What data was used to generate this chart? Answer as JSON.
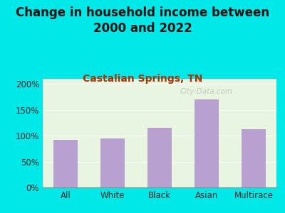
{
  "title": "Change in household income between\n2000 and 2022",
  "subtitle": "Castalian Springs, TN",
  "categories": [
    "All",
    "White",
    "Black",
    "Asian",
    "Multirace"
  ],
  "values": [
    92,
    95,
    115,
    170,
    113
  ],
  "bar_color": "#b8a0d0",
  "title_fontsize": 12,
  "subtitle_fontsize": 10,
  "subtitle_color": "#b03000",
  "background_outer": "#00e8e8",
  "background_plot": "#e8f5e0",
  "ylim": [
    0,
    210
  ],
  "yticks": [
    0,
    50,
    100,
    150,
    200
  ],
  "watermark": "City-Data.com"
}
